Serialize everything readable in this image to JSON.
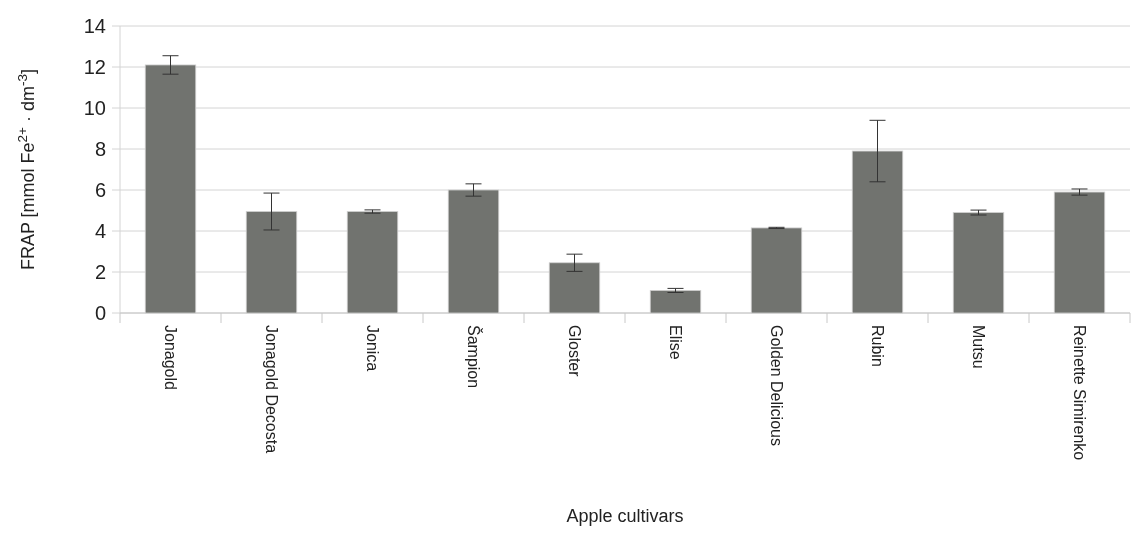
{
  "chart_data": {
    "type": "bar",
    "xlabel": "Apple cultivars",
    "ylabel": "FRAP [mmol Fe$^{2+}$ · dm$^{-3}$]",
    "categories": [
      "Jonagold",
      "Jonagold Decosta",
      "Jonica",
      "Šampion",
      "Gloster",
      "Elise",
      "Golden Delicious",
      "Rubin",
      "Mutsu",
      "Reinette Simirenko"
    ],
    "values": [
      12.1,
      4.95,
      4.95,
      6.0,
      2.45,
      1.1,
      4.15,
      7.9,
      4.9,
      5.9
    ],
    "errors": [
      0.45,
      0.9,
      0.08,
      0.3,
      0.42,
      0.1,
      0.03,
      1.5,
      0.12,
      0.15
    ],
    "color": "#71736f",
    "ylim": [
      0,
      14
    ],
    "yticks": [
      0,
      2,
      4,
      6,
      8,
      10,
      12,
      14
    ],
    "grid": "y"
  }
}
